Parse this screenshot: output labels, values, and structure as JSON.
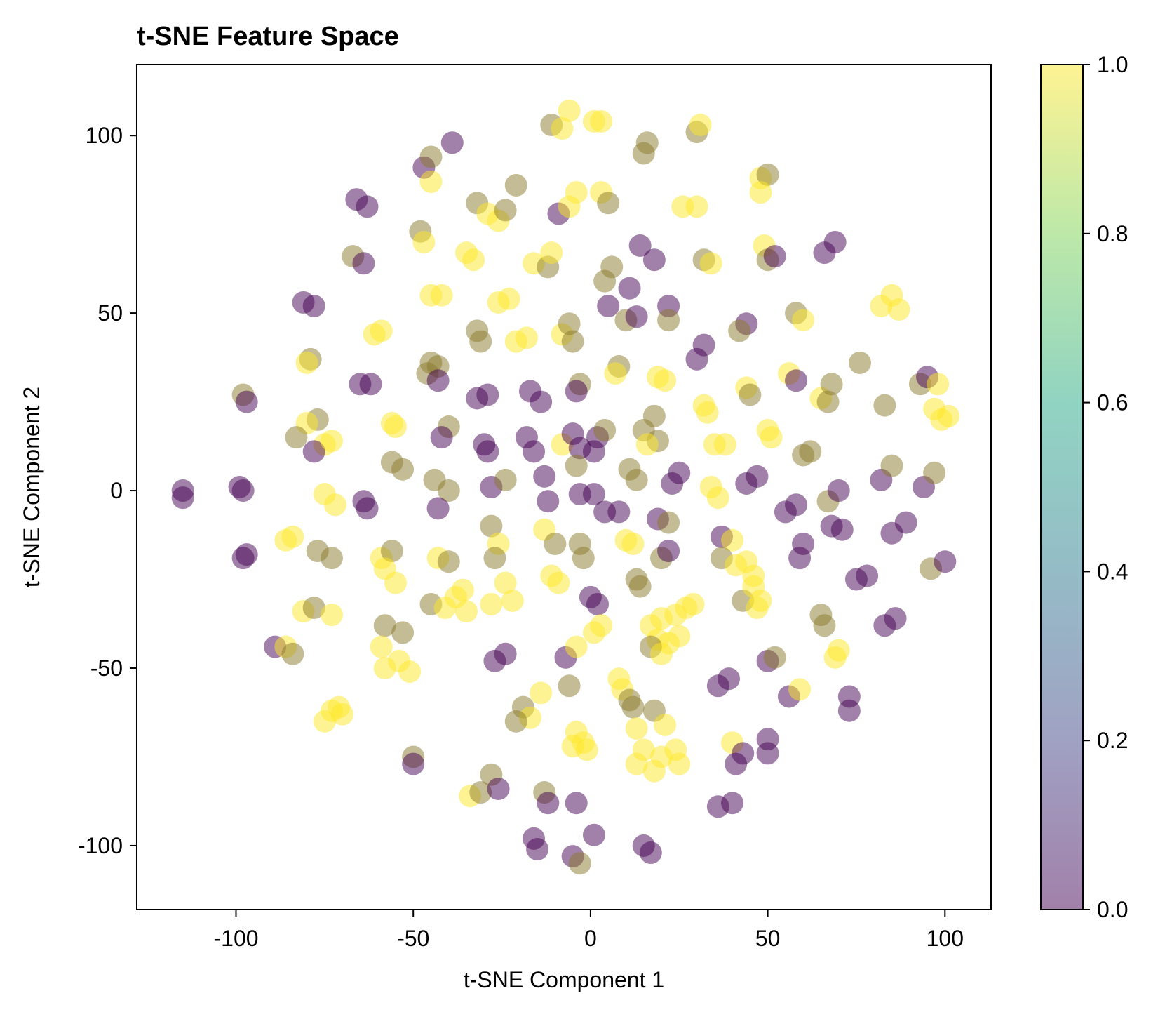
{
  "chart_data": {
    "type": "scatter",
    "title": "t-SNE Feature Space",
    "xlabel": "t-SNE Component 1",
    "ylabel": "t-SNE Component 2",
    "xlim": [
      -128,
      113
    ],
    "ylim": [
      -118,
      120
    ],
    "xticks": [
      -100,
      -50,
      0,
      50,
      100
    ],
    "yticks": [
      -100,
      -50,
      0,
      50,
      100
    ],
    "xtick_labels": [
      "-100",
      "-50",
      "0",
      "50",
      "100"
    ],
    "ytick_labels": [
      "-100",
      "-50",
      "0",
      "50",
      "100"
    ],
    "colormap": "viridis",
    "colorbar": {
      "range": [
        0.0,
        1.0
      ],
      "ticks": [
        "0.0",
        "0.2",
        "0.4",
        "0.6",
        "0.8",
        "1.0"
      ],
      "colors": [
        "#440154",
        "#414487",
        "#2a788e",
        "#22a884",
        "#7ad151",
        "#fde725"
      ]
    },
    "marker_alpha": 0.5,
    "grid": false,
    "points": [
      [
        -115,
        0,
        0
      ],
      [
        -115,
        -2,
        0
      ],
      [
        -99,
        1,
        0
      ],
      [
        -98,
        0,
        0
      ],
      [
        -98,
        -19,
        0
      ],
      [
        -97,
        -18,
        0
      ],
      [
        -98,
        27,
        0.5
      ],
      [
        -97,
        25,
        0
      ],
      [
        -81,
        53,
        0
      ],
      [
        -78,
        52,
        0
      ],
      [
        -79,
        37,
        0.5
      ],
      [
        -80,
        36,
        1
      ],
      [
        -77,
        20,
        0.5
      ],
      [
        -80,
        19,
        1
      ],
      [
        -83,
        15,
        0.5
      ],
      [
        -75,
        13,
        1
      ],
      [
        -78,
        11,
        0
      ],
      [
        -73,
        14,
        1
      ],
      [
        -84,
        -13,
        1
      ],
      [
        -86,
        -14,
        1
      ],
      [
        -77,
        -17,
        0.5
      ],
      [
        -73,
        -19,
        0.5
      ],
      [
        -81,
        -34,
        1
      ],
      [
        -78,
        -33,
        0.5
      ],
      [
        -73,
        -35,
        1
      ],
      [
        -89,
        -44,
        0
      ],
      [
        -86,
        -44,
        1
      ],
      [
        -84,
        -46,
        0.5
      ],
      [
        -73,
        -62,
        1
      ],
      [
        -70,
        -63,
        1
      ],
      [
        -75,
        -65,
        1
      ],
      [
        -71,
        -61,
        1
      ],
      [
        -75,
        -1,
        1
      ],
      [
        -72,
        -4,
        1
      ],
      [
        -66,
        82,
        0
      ],
      [
        -63,
        80,
        0
      ],
      [
        -67,
        66,
        0.5
      ],
      [
        -64,
        64,
        0
      ],
      [
        -59,
        45,
        1
      ],
      [
        -61,
        44,
        1
      ],
      [
        -65,
        30,
        0
      ],
      [
        -62,
        30,
        0
      ],
      [
        -64,
        -3,
        0
      ],
      [
        -63,
        -5,
        0
      ],
      [
        -59,
        -19,
        1
      ],
      [
        -56,
        -17,
        0.5
      ],
      [
        -58,
        -22,
        1
      ],
      [
        -55,
        -26,
        1
      ],
      [
        -58,
        -38,
        0.5
      ],
      [
        -53,
        -40,
        0.5
      ],
      [
        -59,
        -44,
        1
      ],
      [
        -54,
        -48,
        1
      ],
      [
        -58,
        -50,
        1
      ],
      [
        -51,
        -51,
        1
      ],
      [
        -55,
        18,
        1
      ],
      [
        -56,
        19,
        1
      ],
      [
        -56,
        8,
        0.5
      ],
      [
        -53,
        6,
        0.5
      ],
      [
        -50,
        -75,
        0.5
      ],
      [
        -50,
        -77,
        0
      ],
      [
        -47,
        91,
        0
      ],
      [
        -45,
        94,
        0.5
      ],
      [
        -45,
        87,
        1
      ],
      [
        -39,
        98,
        0
      ],
      [
        -48,
        73,
        0.5
      ],
      [
        -47,
        70,
        1
      ],
      [
        -45,
        55,
        1
      ],
      [
        -42,
        55,
        1
      ],
      [
        -45,
        36,
        0.5
      ],
      [
        -43,
        35,
        0.5
      ],
      [
        -46,
        33,
        0.5
      ],
      [
        -43,
        31,
        0
      ],
      [
        -40,
        18,
        0.5
      ],
      [
        -42,
        15,
        0
      ],
      [
        -44,
        3,
        0.5
      ],
      [
        -40,
        0,
        0.5
      ],
      [
        -43,
        -5,
        0
      ],
      [
        -43,
        -19,
        1
      ],
      [
        -40,
        -20,
        0.5
      ],
      [
        -38,
        -30,
        1
      ],
      [
        -45,
        -32,
        0.5
      ],
      [
        -41,
        -33,
        1
      ],
      [
        -36,
        -28,
        1
      ],
      [
        -35,
        -34,
        1
      ],
      [
        -34,
        -86,
        1
      ],
      [
        -31,
        -85,
        0.5
      ],
      [
        -35,
        67,
        1
      ],
      [
        -33,
        65,
        1
      ],
      [
        -32,
        45,
        0.5
      ],
      [
        -31,
        42,
        0.5
      ],
      [
        -32,
        26,
        0
      ],
      [
        -29,
        27,
        0
      ],
      [
        -30,
        13,
        0
      ],
      [
        -29,
        11,
        0
      ],
      [
        -32,
        81,
        0.5
      ],
      [
        -29,
        78,
        1
      ],
      [
        -26,
        76,
        1
      ],
      [
        -24,
        79,
        0.5
      ],
      [
        -28,
        1,
        0
      ],
      [
        -24,
        3,
        0.5
      ],
      [
        -28,
        -10,
        0.5
      ],
      [
        -26,
        -15,
        1
      ],
      [
        -27,
        -19,
        0.5
      ],
      [
        -24,
        -26,
        1
      ],
      [
        -28,
        -32,
        1
      ],
      [
        -22,
        -31,
        1
      ],
      [
        -26,
        53,
        1
      ],
      [
        -23,
        54,
        1
      ],
      [
        -21,
        42,
        1
      ],
      [
        -18,
        43,
        1
      ],
      [
        -21,
        86,
        0.5
      ],
      [
        -28,
        -80,
        0.5
      ],
      [
        -26,
        -84,
        0
      ],
      [
        -27,
        -48,
        0
      ],
      [
        -24,
        -46,
        0
      ],
      [
        -18,
        15,
        0
      ],
      [
        -16,
        11,
        0
      ],
      [
        -17,
        28,
        0
      ],
      [
        -14,
        25,
        0
      ],
      [
        -19,
        -61,
        0.5
      ],
      [
        -17,
        -64,
        1
      ],
      [
        -21,
        -65,
        0.5
      ],
      [
        -14,
        -57,
        1
      ],
      [
        -16,
        -98,
        0
      ],
      [
        -15,
        -101,
        0
      ],
      [
        -13,
        -85,
        0.5
      ],
      [
        -12,
        -88,
        0
      ],
      [
        -16,
        64,
        1
      ],
      [
        -12,
        63,
        0.5
      ],
      [
        -11,
        67,
        1
      ],
      [
        -12,
        -3,
        0
      ],
      [
        -13,
        4,
        0
      ],
      [
        -13,
        -11,
        1
      ],
      [
        -10,
        -15,
        0.5
      ],
      [
        -11,
        -24,
        1
      ],
      [
        -9,
        -26,
        1
      ],
      [
        -11,
        103,
        0.5
      ],
      [
        -8,
        102,
        1
      ],
      [
        -6,
        107,
        1
      ],
      [
        -9,
        78,
        0
      ],
      [
        -6,
        80,
        1
      ],
      [
        -4,
        84,
        1
      ],
      [
        -8,
        44,
        1
      ],
      [
        -6,
        47,
        0.5
      ],
      [
        -5,
        42,
        0.5
      ],
      [
        -8,
        13,
        1
      ],
      [
        -5,
        16,
        0
      ],
      [
        -3,
        12,
        0
      ],
      [
        -4,
        7,
        0.5
      ],
      [
        -7,
        -47,
        0
      ],
      [
        -4,
        -44,
        1
      ],
      [
        -6,
        -55,
        0.5
      ],
      [
        -5,
        -72,
        1
      ],
      [
        -2,
        -71,
        1
      ],
      [
        -4,
        -68,
        1
      ],
      [
        -1,
        -73,
        1
      ],
      [
        -4,
        -88,
        0
      ],
      [
        -5,
        -103,
        0
      ],
      [
        -3,
        -105,
        0.5
      ],
      [
        1,
        104,
        1
      ],
      [
        3,
        104,
        1
      ],
      [
        -3,
        30,
        0.5
      ],
      [
        -4,
        28,
        0
      ],
      [
        -3,
        -15,
        0.5
      ],
      [
        -2,
        -19,
        0.5
      ],
      [
        -3,
        -1,
        0
      ],
      [
        1,
        -1,
        0
      ],
      [
        2,
        15,
        0
      ],
      [
        4,
        17,
        0.5
      ],
      [
        1,
        11,
        0
      ],
      [
        0,
        -30,
        0
      ],
      [
        2,
        -32,
        0
      ],
      [
        1,
        -40,
        1
      ],
      [
        3,
        -38,
        1
      ],
      [
        1,
        -97,
        0
      ],
      [
        3,
        84,
        1
      ],
      [
        5,
        81,
        0.5
      ],
      [
        4,
        59,
        0.5
      ],
      [
        6,
        63,
        0.5
      ],
      [
        5,
        52,
        0
      ],
      [
        8,
        35,
        0.5
      ],
      [
        7,
        33,
        1
      ],
      [
        4,
        -6,
        0
      ],
      [
        8,
        -6,
        0
      ],
      [
        9,
        -56,
        1
      ],
      [
        11,
        -59,
        0.5
      ],
      [
        8,
        -53,
        1
      ],
      [
        12,
        -61,
        0.5
      ],
      [
        10,
        48,
        0.5
      ],
      [
        13,
        49,
        0
      ],
      [
        11,
        57,
        0
      ],
      [
        11,
        6,
        0.5
      ],
      [
        13,
        3,
        0.5
      ],
      [
        10,
        -14,
        1
      ],
      [
        12,
        -15,
        1
      ],
      [
        13,
        -25,
        0.5
      ],
      [
        14,
        -27,
        0.5
      ],
      [
        13,
        -67,
        1
      ],
      [
        15,
        -73,
        1
      ],
      [
        13,
        -77,
        1
      ],
      [
        16,
        98,
        0.5
      ],
      [
        15,
        95,
        0.5
      ],
      [
        14,
        69,
        0
      ],
      [
        18,
        65,
        0
      ],
      [
        15,
        17,
        0.5
      ],
      [
        18,
        21,
        0.5
      ],
      [
        19,
        14,
        0.5
      ],
      [
        16,
        13,
        1
      ],
      [
        15,
        -100,
        0
      ],
      [
        17,
        -102,
        0
      ],
      [
        19,
        32,
        1
      ],
      [
        21,
        31,
        1
      ],
      [
        19,
        -8,
        0
      ],
      [
        22,
        -9,
        0.5
      ],
      [
        20,
        -19,
        0.5
      ],
      [
        22,
        -17,
        0
      ],
      [
        17,
        -38,
        1
      ],
      [
        20,
        -36,
        1
      ],
      [
        19,
        -42,
        1
      ],
      [
        24,
        -35,
        1
      ],
      [
        22,
        -43,
        1
      ],
      [
        27,
        -33,
        1
      ],
      [
        25,
        -41,
        1
      ],
      [
        29,
        -32,
        1
      ],
      [
        17,
        -44,
        0.5
      ],
      [
        20,
        -46,
        1
      ],
      [
        18,
        -62,
        0.5
      ],
      [
        21,
        -66,
        1
      ],
      [
        20,
        -75,
        1
      ],
      [
        24,
        -73,
        1
      ],
      [
        18,
        -79,
        1
      ],
      [
        25,
        -77,
        1
      ],
      [
        22,
        52,
        0
      ],
      [
        22,
        48,
        0.5
      ],
      [
        25,
        5,
        0
      ],
      [
        23,
        2,
        0
      ],
      [
        26,
        80,
        1
      ],
      [
        30,
        80,
        1
      ],
      [
        30,
        101,
        0.5
      ],
      [
        31,
        103,
        1
      ],
      [
        32,
        41,
        0
      ],
      [
        30,
        37,
        0
      ],
      [
        32,
        65,
        0.5
      ],
      [
        34,
        64,
        1
      ],
      [
        32,
        24,
        1
      ],
      [
        33,
        22,
        1
      ],
      [
        35,
        13,
        1
      ],
      [
        38,
        13,
        1
      ],
      [
        34,
        1,
        1
      ],
      [
        36,
        -2,
        1
      ],
      [
        37,
        -13,
        0
      ],
      [
        40,
        -14,
        1
      ],
      [
        37,
        -19,
        0.5
      ],
      [
        41,
        -21,
        1
      ],
      [
        36,
        -55,
        0
      ],
      [
        39,
        -53,
        0
      ],
      [
        36,
        -89,
        0
      ],
      [
        40,
        -88,
        0
      ],
      [
        40,
        -71,
        1
      ],
      [
        43,
        -74,
        0
      ],
      [
        41,
        -77,
        0
      ],
      [
        44,
        47,
        0
      ],
      [
        42,
        45,
        0.5
      ],
      [
        44,
        29,
        1
      ],
      [
        45,
        27,
        0.5
      ],
      [
        44,
        2,
        0
      ],
      [
        47,
        4,
        0
      ],
      [
        44,
        -20,
        1
      ],
      [
        46,
        -24,
        1
      ],
      [
        43,
        -31,
        0.5
      ],
      [
        47,
        -33,
        1
      ],
      [
        46,
        -27,
        1
      ],
      [
        48,
        -31,
        1
      ],
      [
        48,
        88,
        1
      ],
      [
        50,
        89,
        0.5
      ],
      [
        48,
        84,
        1
      ],
      [
        49,
        69,
        1
      ],
      [
        50,
        65,
        0.5
      ],
      [
        52,
        66,
        0
      ],
      [
        50,
        17,
        1
      ],
      [
        51,
        15,
        1
      ],
      [
        50,
        -48,
        0
      ],
      [
        52,
        -47,
        0.5
      ],
      [
        50,
        -70,
        0
      ],
      [
        50,
        -74,
        0
      ],
      [
        55,
        -6,
        0
      ],
      [
        58,
        -4,
        0
      ],
      [
        56,
        33,
        1
      ],
      [
        58,
        31,
        0
      ],
      [
        58,
        50,
        0.5
      ],
      [
        60,
        48,
        1
      ],
      [
        60,
        10,
        0.5
      ],
      [
        62,
        11,
        0.5
      ],
      [
        56,
        -58,
        0
      ],
      [
        59,
        -56,
        1
      ],
      [
        60,
        -15,
        0
      ],
      [
        59,
        -19,
        0
      ],
      [
        65,
        26,
        1
      ],
      [
        68,
        30,
        0.5
      ],
      [
        67,
        25,
        0.5
      ],
      [
        66,
        67,
        0
      ],
      [
        69,
        70,
        0
      ],
      [
        67,
        -3,
        0.5
      ],
      [
        70,
        0,
        0
      ],
      [
        65,
        -35,
        0.5
      ],
      [
        66,
        -38,
        0.5
      ],
      [
        68,
        -10,
        0
      ],
      [
        71,
        -11,
        0
      ],
      [
        70,
        -45,
        1
      ],
      [
        69,
        -47,
        1
      ],
      [
        73,
        -58,
        0
      ],
      [
        73,
        -62,
        0
      ],
      [
        75,
        -25,
        0
      ],
      [
        78,
        -24,
        0
      ],
      [
        76,
        36,
        0.5
      ],
      [
        82,
        52,
        1
      ],
      [
        85,
        55,
        1
      ],
      [
        87,
        51,
        1
      ],
      [
        82,
        3,
        0
      ],
      [
        85,
        7,
        0.5
      ],
      [
        83,
        24,
        0.5
      ],
      [
        83,
        -38,
        0
      ],
      [
        86,
        -36,
        0
      ],
      [
        85,
        -12,
        0
      ],
      [
        89,
        -9,
        0
      ],
      [
        93,
        30,
        0.5
      ],
      [
        95,
        32,
        0
      ],
      [
        98,
        30,
        1
      ],
      [
        99,
        20,
        1
      ],
      [
        97,
        23,
        1
      ],
      [
        94,
        1,
        0
      ],
      [
        97,
        5,
        0.5
      ],
      [
        96,
        -22,
        0.5
      ],
      [
        100,
        -20,
        0
      ],
      [
        101,
        21,
        1
      ]
    ]
  }
}
